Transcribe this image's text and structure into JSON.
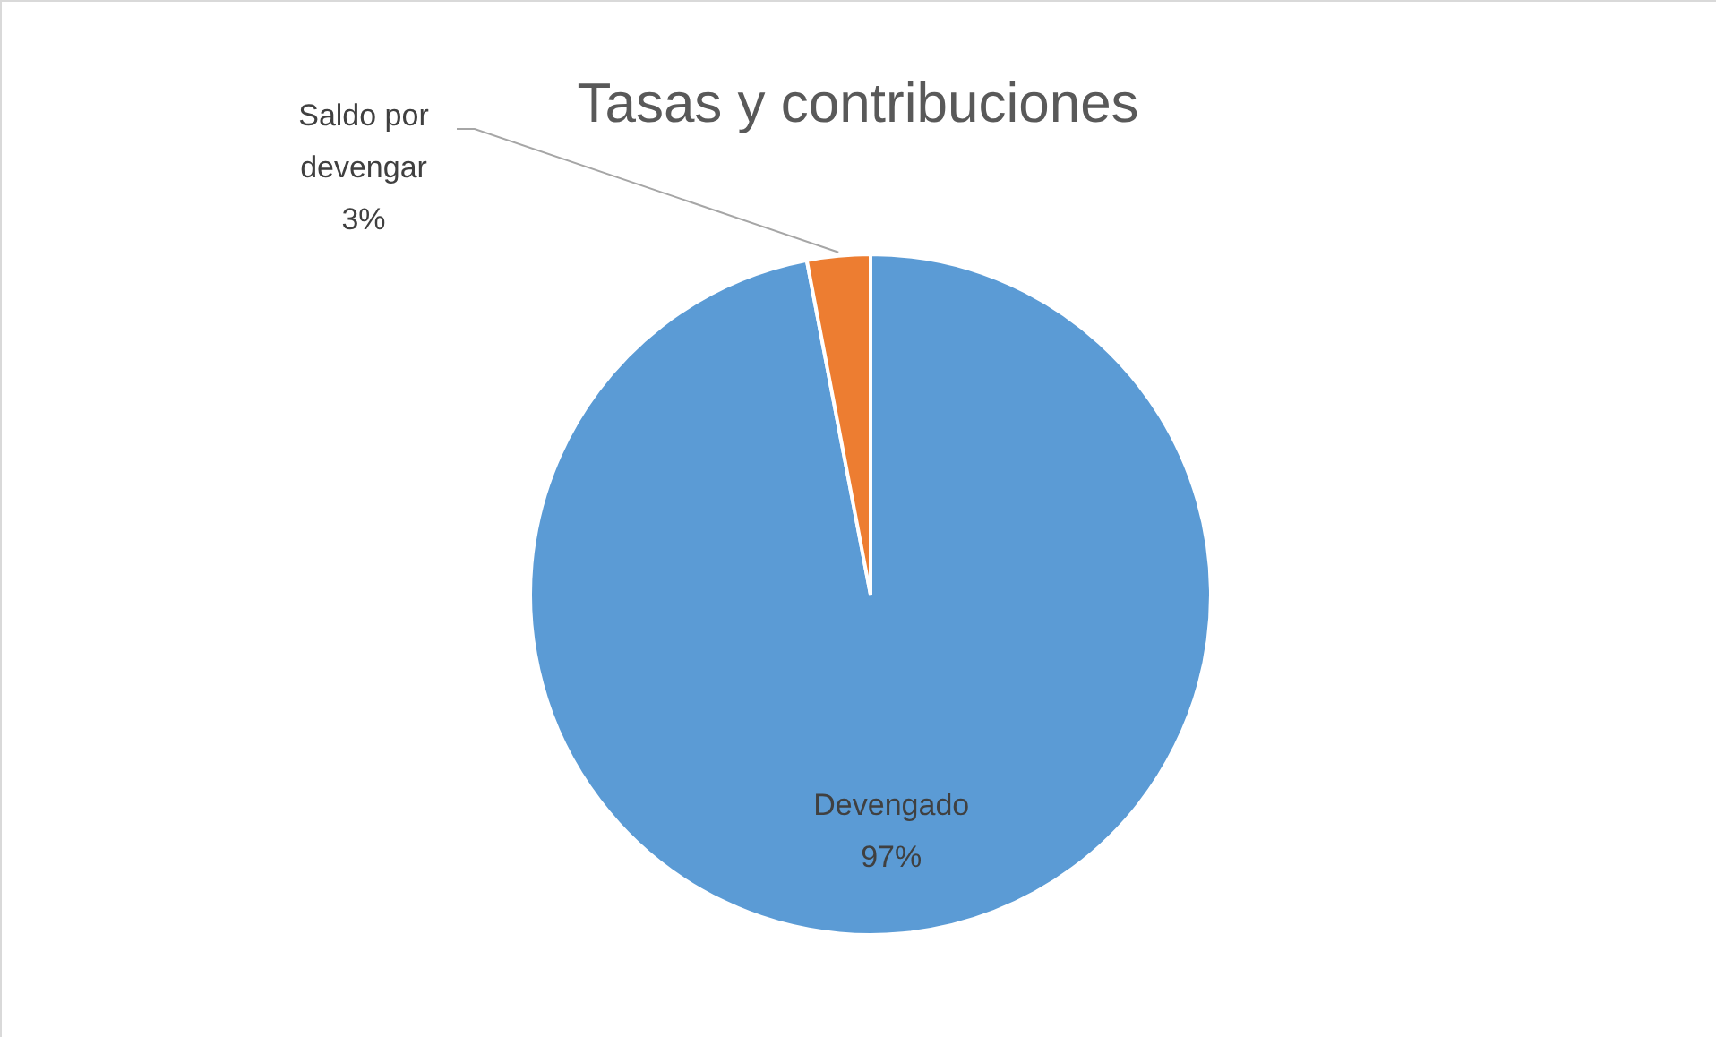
{
  "chart_data": {
    "type": "pie",
    "title": "Tasas y contribuciones",
    "categories": [
      "Devengado",
      "Saldo por devengar"
    ],
    "values": [
      97,
      3
    ],
    "colors": [
      "#5b9bd5",
      "#ed7d31"
    ],
    "value_labels": [
      "97%",
      "3%"
    ]
  }
}
